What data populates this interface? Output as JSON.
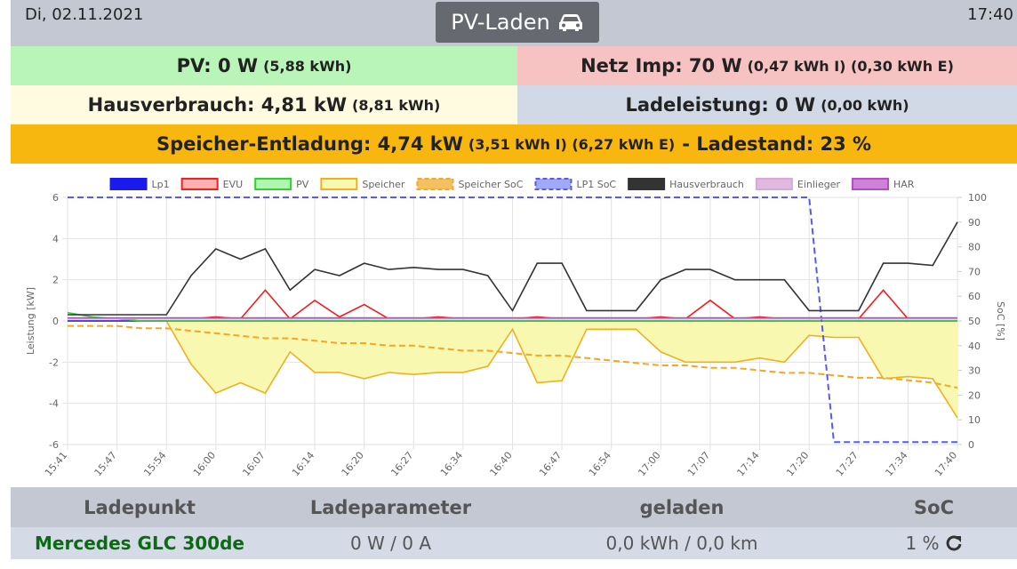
{
  "header": {
    "date": "Di, 02.11.2021",
    "title": "PV-Laden",
    "time": "17:40"
  },
  "status": {
    "pv": {
      "main": "PV: 0 W",
      "detail": "(5,88 kWh)"
    },
    "grid": {
      "main": "Netz Imp: 70 W",
      "detail": "(0,47 kWh I) (0,30 kWh E)"
    },
    "house": {
      "main": "Hausverbrauch: 4,81 kW",
      "detail": "(8,81 kWh)"
    },
    "charge": {
      "main": "Ladeleistung: 0 W",
      "detail": "(0,00 kWh)"
    },
    "battery": {
      "main": "Speicher-Entladung: 4,74 kW",
      "detail": "(3,51 kWh I) (6,27 kWh E)",
      "soc": "- Ladestand: 23 %"
    }
  },
  "chart_data": {
    "type": "line",
    "categories": [
      "15:41",
      null,
      "15:47",
      null,
      "15:54",
      null,
      "16:00",
      null,
      "16:07",
      null,
      "16:14",
      null,
      "16:20",
      null,
      "16:27",
      null,
      "16:34",
      null,
      "16:40",
      null,
      "16:47",
      null,
      "16:54",
      null,
      "17:00",
      null,
      "17:07",
      null,
      "17:14",
      null,
      "17:20",
      null,
      "17:27",
      null,
      "17:34",
      null,
      "17:40"
    ],
    "ylabel": "Leistung [kW]",
    "y2label": "SoC [%]",
    "ylim": [
      -6,
      6
    ],
    "yticks": [
      -6,
      -4,
      -2,
      0,
      2,
      4,
      6
    ],
    "y2lim": [
      0,
      100
    ],
    "y2ticks": [
      0,
      10,
      20,
      30,
      40,
      50,
      60,
      70,
      80,
      90,
      100
    ],
    "grid": true,
    "series": [
      {
        "name": "Lp1",
        "color": "#1a1aee",
        "fill": "#1a1aee",
        "values": [
          0,
          0,
          0,
          0,
          0,
          0,
          0,
          0,
          0,
          0,
          0,
          0,
          0,
          0,
          0,
          0,
          0,
          0,
          0,
          0,
          0,
          0,
          0,
          0,
          0,
          0,
          0,
          0,
          0,
          0,
          0,
          0,
          0,
          0,
          0,
          0,
          0
        ]
      },
      {
        "name": "EVU",
        "color": "#ee2020",
        "fill": "#ffb0b0",
        "values": [
          0.1,
          0.1,
          0.1,
          0.1,
          0.1,
          0.1,
          0.2,
          0.1,
          1.5,
          0.1,
          1.0,
          0.2,
          0.8,
          0.1,
          0.1,
          0.2,
          0.1,
          0.1,
          0.1,
          0.2,
          0.1,
          0.1,
          0.1,
          0.1,
          0.2,
          0.1,
          1.0,
          0.1,
          0.2,
          0.1,
          0.1,
          0.1,
          0.1,
          1.5,
          0.1,
          0.1,
          0.1
        ]
      },
      {
        "name": "PV",
        "color": "#30d030",
        "fill": "#b0f5b0",
        "values": [
          0.4,
          0.2,
          0.1,
          0,
          0,
          0,
          0,
          0,
          0,
          0,
          0,
          0,
          0,
          0,
          0,
          0,
          0,
          0,
          0,
          0,
          0,
          0,
          0,
          0,
          0,
          0,
          0,
          0,
          0,
          0,
          0,
          0,
          0,
          0,
          0,
          0,
          0
        ]
      },
      {
        "name": "Speicher",
        "color": "#f0b020",
        "fill": "#f8f8b0",
        "area": true,
        "values": [
          0,
          0,
          0,
          0,
          0,
          -2.1,
          -3.5,
          -3.0,
          -3.5,
          -1.5,
          -2.5,
          -2.5,
          -2.8,
          -2.5,
          -2.6,
          -2.5,
          -2.5,
          -2.2,
          -0.4,
          -3.0,
          -2.9,
          -0.4,
          -0.4,
          -0.4,
          -1.5,
          -2.0,
          -2.0,
          -2.0,
          -1.8,
          -2.0,
          -0.7,
          -0.8,
          -0.8,
          -2.8,
          -2.7,
          -2.8,
          -4.7
        ]
      },
      {
        "name": "Speicher SoC",
        "color": "#f5a623",
        "fill": "#f5c060",
        "dash": true,
        "axis": "y2",
        "values": [
          48,
          48,
          48,
          47,
          47,
          46,
          45,
          44,
          43,
          43,
          42,
          41,
          41,
          40,
          40,
          39,
          38,
          38,
          37,
          36,
          36,
          35,
          34,
          33,
          32,
          32,
          31,
          31,
          30,
          29,
          29,
          28,
          27,
          27,
          26,
          25,
          23
        ]
      },
      {
        "name": "LP1 SoC",
        "color": "#5a5aee",
        "fill": "#a0a8f8",
        "dash": true,
        "axis": "y2",
        "values": [
          100,
          100,
          100,
          100,
          100,
          100,
          100,
          100,
          100,
          100,
          100,
          100,
          100,
          100,
          100,
          100,
          100,
          100,
          100,
          100,
          100,
          100,
          100,
          100,
          100,
          100,
          100,
          100,
          100,
          100,
          100,
          1,
          1,
          1,
          1,
          1,
          1
        ]
      },
      {
        "name": "Hausverbrauch",
        "color": "#333333",
        "fill": "#333333",
        "values": [
          0.3,
          0.3,
          0.3,
          0.3,
          0.3,
          2.2,
          3.5,
          3.0,
          3.5,
          1.5,
          2.5,
          2.2,
          2.8,
          2.5,
          2.6,
          2.5,
          2.5,
          2.2,
          0.5,
          2.8,
          2.8,
          0.5,
          0.5,
          0.5,
          2.0,
          2.5,
          2.5,
          2.0,
          2.0,
          2.0,
          0.5,
          0.5,
          0.5,
          2.8,
          2.8,
          2.7,
          4.8
        ]
      },
      {
        "name": "Einlieger",
        "color": "#d8a8d8",
        "fill": "#e0b8e0",
        "values": [
          0.1,
          0.1,
          0.1,
          0.1,
          0.1,
          0.1,
          0.1,
          0.1,
          0.1,
          0.1,
          0.1,
          0.1,
          0.1,
          0.1,
          0.1,
          0.1,
          0.1,
          0.1,
          0.1,
          0.1,
          0.1,
          0.1,
          0.1,
          0.1,
          0.1,
          0.1,
          0.1,
          0.1,
          0.1,
          0.1,
          0.1,
          0.1,
          0.1,
          0.1,
          0.1,
          0.1,
          0.1
        ]
      },
      {
        "name": "HAR",
        "color": "#b050c0",
        "fill": "#d080d8",
        "values": [
          0.15,
          0.15,
          0.15,
          0.15,
          0.15,
          0.15,
          0.15,
          0.15,
          0.15,
          0.15,
          0.15,
          0.15,
          0.15,
          0.15,
          0.15,
          0.15,
          0.15,
          0.15,
          0.15,
          0.15,
          0.15,
          0.15,
          0.15,
          0.15,
          0.15,
          0.15,
          0.15,
          0.15,
          0.15,
          0.15,
          0.15,
          0.15,
          0.15,
          0.15,
          0.15,
          0.15,
          0.15
        ]
      }
    ]
  },
  "table": {
    "header": [
      "Ladepunkt",
      "Ladeparameter",
      "geladen",
      "SoC"
    ],
    "rows": [
      [
        "Mercedes GLC 300de",
        "0 W / 0 A",
        "0,0 kWh / 0,0 km",
        "1 %"
      ]
    ]
  }
}
